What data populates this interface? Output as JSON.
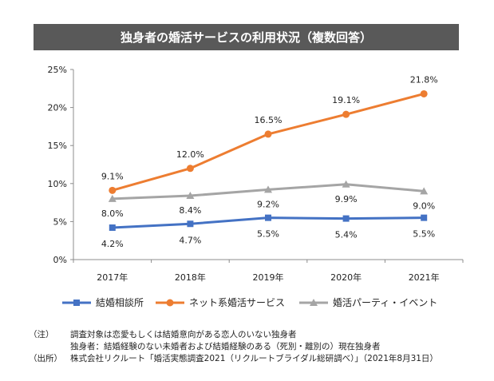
{
  "chart_data": {
    "type": "line",
    "title": "独身者の婚活サービスの利用状況（複数回答）",
    "categories": [
      "2017年",
      "2018年",
      "2019年",
      "2020年",
      "2021年"
    ],
    "ylim": [
      0,
      25
    ],
    "yticks": [
      "0%",
      "5%",
      "10%",
      "15%",
      "20%",
      "25%"
    ],
    "grid": false,
    "legend_position": "bottom",
    "series": [
      {
        "name": "結婚相談所",
        "color": "#4472c4",
        "marker": "square",
        "values": [
          4.2,
          4.7,
          5.5,
          5.4,
          5.5
        ],
        "labels": [
          "4.2%",
          "4.7%",
          "5.5%",
          "5.4%",
          "5.5%"
        ],
        "label_pos": "below"
      },
      {
        "name": "ネット系婚活サービス",
        "color": "#ed7d31",
        "marker": "circle",
        "values": [
          9.1,
          12.0,
          16.5,
          19.1,
          21.8
        ],
        "labels": [
          "9.1%",
          "12.0%",
          "16.5%",
          "19.1%",
          "21.8%"
        ],
        "label_pos": "above"
      },
      {
        "name": "婚活パーティ・イベント",
        "color": "#a5a5a5",
        "marker": "triangle",
        "values": [
          8.0,
          8.4,
          9.2,
          9.9,
          9.0
        ],
        "labels": [
          "8.0%",
          "8.4%",
          "9.2%",
          "9.9%",
          "9.0%"
        ],
        "label_pos": "below"
      }
    ]
  },
  "notes": [
    {
      "tag": "（注）",
      "text": "調査対象は恋愛もしくは結婚意向がある恋人のいない独身者"
    },
    {
      "tag": "",
      "text": "独身者：結婚経験のない未婚者および結婚経験のある（死別・離別の）現在独身者"
    },
    {
      "tag": "（出所）",
      "text": "株式会社リクルート「婚活実態調査2021（リクルートブライダル総研調べ）」（2021年8月31日）"
    }
  ]
}
